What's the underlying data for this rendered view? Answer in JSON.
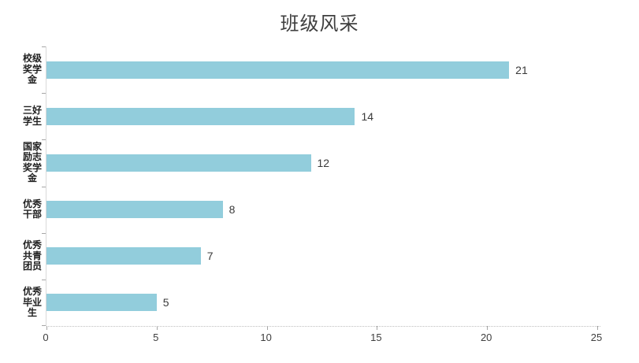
{
  "chart_data": {
    "type": "bar",
    "orientation": "horizontal",
    "title": "班级风采",
    "categories": [
      "校级奖学金",
      "三好学生",
      "国家励志奖学金",
      "优秀干部",
      "优秀共青团员",
      "优秀毕业生"
    ],
    "category_label_lines": [
      [
        "校级",
        "奖学",
        "金"
      ],
      [
        "三好",
        "学生"
      ],
      [
        "国家",
        "励志",
        "奖学",
        "金"
      ],
      [
        "优秀",
        "干部"
      ],
      [
        "优秀",
        "共青",
        "团员"
      ],
      [
        "优秀",
        "毕业",
        "生"
      ]
    ],
    "values": [
      21,
      14,
      12,
      8,
      7,
      5
    ],
    "xlabel": "",
    "ylabel": "",
    "xlim": [
      0,
      25
    ],
    "x_ticks": [
      0,
      5,
      10,
      15,
      20,
      25
    ],
    "grid": false,
    "legend": false,
    "colors": {
      "bar": "#92CDDC",
      "axis_line": "#D9D9D9",
      "tick_mark": "#A6A6A6",
      "title_text": "#3F3F3F",
      "value_text": "#3A3A3A",
      "category_text": "#1F1F1F",
      "tick_label_text": "#3F3F3F"
    }
  }
}
